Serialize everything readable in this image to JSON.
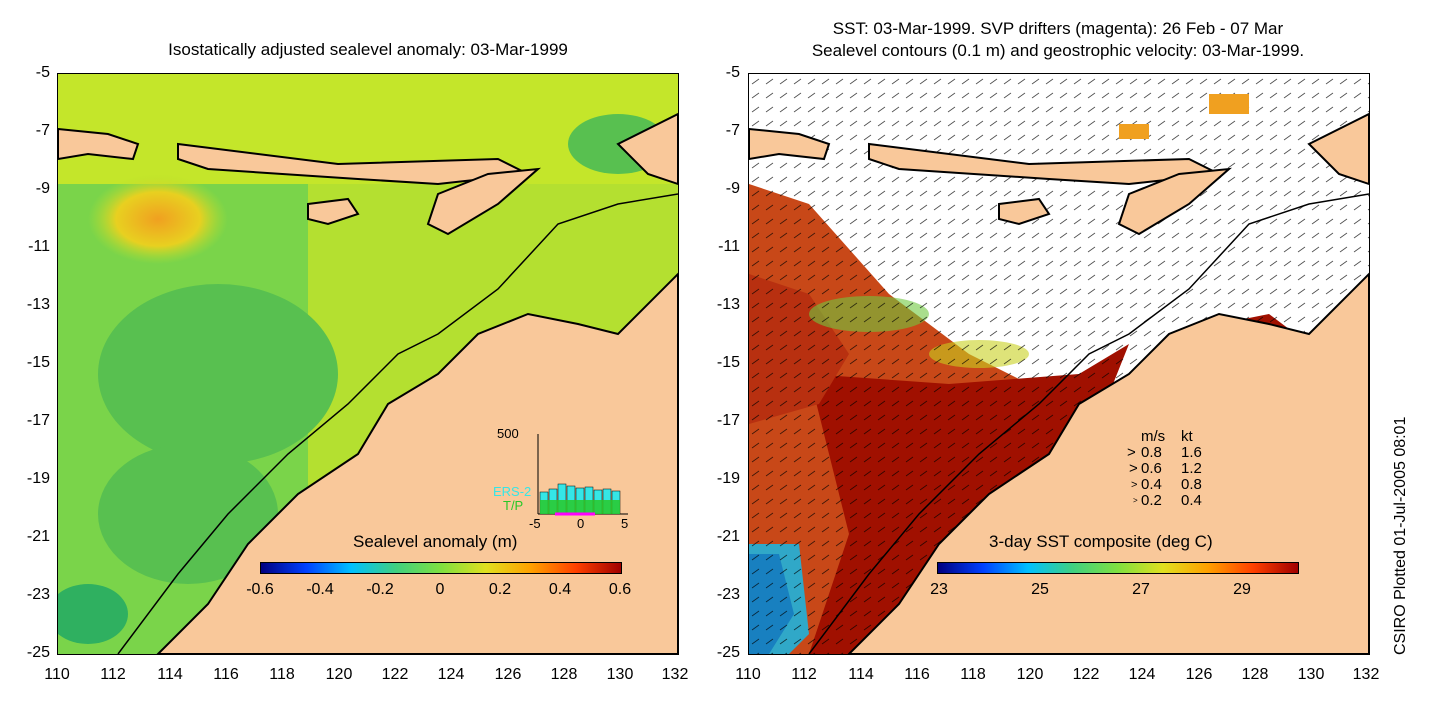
{
  "left_panel": {
    "title": "Isostatically adjusted sealevel anomaly: 03-Mar-1999",
    "colorbar_title": "Sealevel anomaly (m)",
    "colorbar_ticks": [
      "-0.6",
      "-0.4",
      "-0.2",
      "0",
      "0.2",
      "0.4",
      "0.6"
    ],
    "inset": {
      "y_label": "500",
      "series": [
        "ERS-2",
        "T/P"
      ],
      "x_ticks": [
        "-5",
        "0",
        "5"
      ],
      "colors": {
        "ERS-2": "#35e6e6",
        "T/P": "#28c828"
      }
    }
  },
  "right_panel": {
    "title_line1": "SST: 03-Mar-1999. SVP drifters (magenta): 26 Feb - 07 Mar",
    "title_line2": "Sealevel contours (0.1 m) and geostrophic velocity: 03-Mar-1999.",
    "colorbar_title": "3-day SST composite (deg C)",
    "colorbar_ticks": [
      "23",
      "25",
      "27",
      "29"
    ],
    "legend": {
      "header_ms": "m/s",
      "header_kt": "kt",
      "rows": [
        {
          "ms": "0.8",
          "kt": "1.6"
        },
        {
          "ms": "0.6",
          "kt": "1.2"
        },
        {
          "ms": "0.4",
          "kt": "0.8"
        },
        {
          "ms": "0.2",
          "kt": "0.4"
        }
      ]
    }
  },
  "axes": {
    "y_ticks": [
      "-5",
      "-7",
      "-9",
      "-11",
      "-13",
      "-15",
      "-17",
      "-19",
      "-21",
      "-23",
      "-25"
    ],
    "x_ticks": [
      "110",
      "112",
      "114",
      "116",
      "118",
      "120",
      "122",
      "124",
      "126",
      "128",
      "130",
      "132"
    ]
  },
  "credit": "CSIRO Plotted 01-Jul-2005 08:01",
  "colors": {
    "land": "#f9c89a",
    "ocean_green": "#6fd04a",
    "sst_red": "#a01000",
    "sst_orange": "#d8501a",
    "cloud": "#ffffff"
  }
}
